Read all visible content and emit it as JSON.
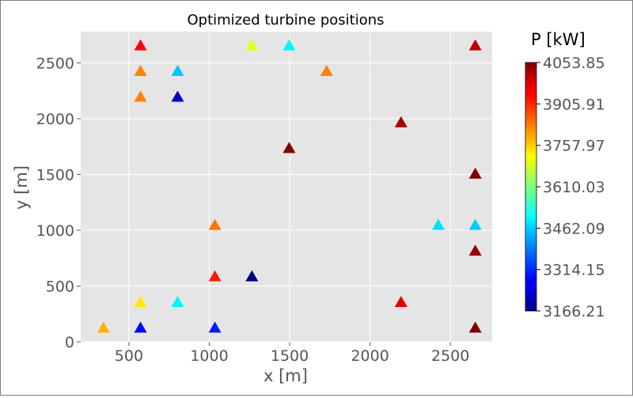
{
  "chart_data": {
    "type": "scatter",
    "title": "Optimized turbine positions",
    "xlabel": "x [m]",
    "ylabel": "y [m]",
    "xlim": [
      200,
      2760
    ],
    "ylim": [
      0,
      2780
    ],
    "xticks": [
      500,
      1000,
      1500,
      2000,
      2500
    ],
    "yticks": [
      0,
      500,
      1000,
      1500,
      2000,
      2500
    ],
    "grid": true,
    "marker": "triangle",
    "colormap": "jet",
    "colorbar": {
      "label": "P [kW]",
      "min": 3166.21,
      "max": 4053.85,
      "ticks": [
        "4053.85",
        "3905.91",
        "3757.97",
        "3610.03",
        "3462.09",
        "3314.15",
        "3166.21"
      ]
    },
    "points": [
      {
        "x": 572,
        "y": 2655,
        "p": 3940
      },
      {
        "x": 1265,
        "y": 2655,
        "p": 3700
      },
      {
        "x": 1497,
        "y": 2655,
        "p": 3490
      },
      {
        "x": 2655,
        "y": 2655,
        "p": 4000
      },
      {
        "x": 572,
        "y": 2425,
        "p": 3830
      },
      {
        "x": 803,
        "y": 2425,
        "p": 3450
      },
      {
        "x": 1730,
        "y": 2425,
        "p": 3830
      },
      {
        "x": 572,
        "y": 2195,
        "p": 3830
      },
      {
        "x": 803,
        "y": 2195,
        "p": 3230
      },
      {
        "x": 2193,
        "y": 1965,
        "p": 4020
      },
      {
        "x": 1497,
        "y": 1735,
        "p": 4053.85
      },
      {
        "x": 2655,
        "y": 1505,
        "p": 4053.85
      },
      {
        "x": 1035,
        "y": 1045,
        "p": 3840
      },
      {
        "x": 2425,
        "y": 1045,
        "p": 3470
      },
      {
        "x": 2655,
        "y": 1045,
        "p": 3455
      },
      {
        "x": 2655,
        "y": 815,
        "p": 4030
      },
      {
        "x": 1035,
        "y": 585,
        "p": 3920
      },
      {
        "x": 1265,
        "y": 585,
        "p": 3166.21
      },
      {
        "x": 572,
        "y": 355,
        "p": 3740
      },
      {
        "x": 803,
        "y": 355,
        "p": 3490
      },
      {
        "x": 2193,
        "y": 355,
        "p": 3970
      },
      {
        "x": 342,
        "y": 125,
        "p": 3790
      },
      {
        "x": 572,
        "y": 125,
        "p": 3280
      },
      {
        "x": 1035,
        "y": 125,
        "p": 3300
      },
      {
        "x": 2655,
        "y": 125,
        "p": 4053.85
      }
    ]
  },
  "colors": {
    "axes_bg": "#e5e5e5",
    "grid": "#ffffff",
    "text": "#555555",
    "title": "#000000"
  }
}
